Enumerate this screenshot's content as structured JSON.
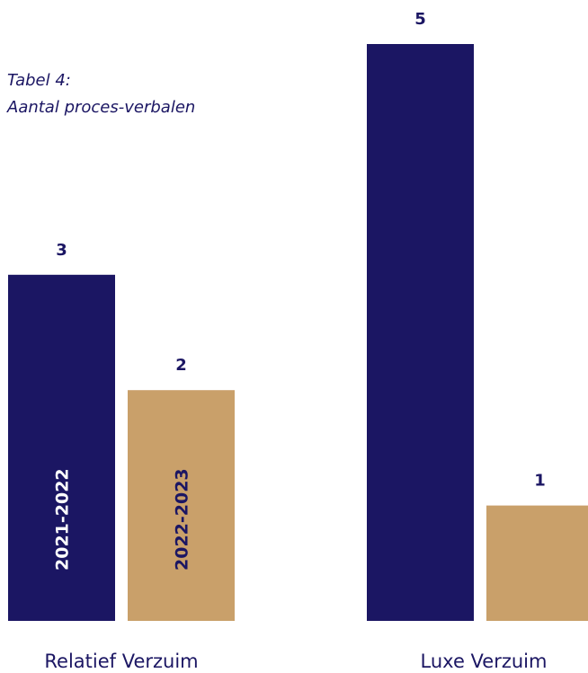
{
  "title_line1": "Tabel 4:",
  "title_line2": "Aantal proces-verbalen",
  "colors": {
    "series_2021": "#1b1663",
    "series_2022": "#c9a06a",
    "text": "#1b1663"
  },
  "chart_data": {
    "type": "bar",
    "title": "Tabel 4: Aantal proces-verbalen",
    "categories": [
      "Relatief Verzuim",
      "Luxe Verzuim"
    ],
    "series": [
      {
        "name": "2021-2022",
        "values": [
          3,
          5
        ]
      },
      {
        "name": "2022-2023",
        "values": [
          2,
          1
        ]
      }
    ],
    "ylim": [
      0,
      5
    ],
    "grid": false,
    "legend": "inside-bars"
  }
}
